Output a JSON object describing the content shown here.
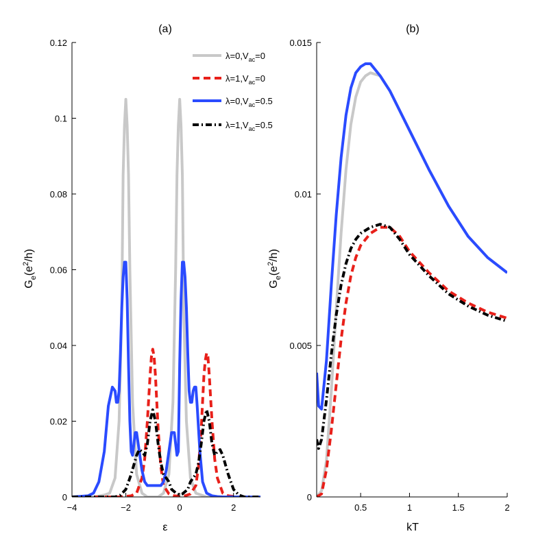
{
  "chart_data": [
    {
      "type": "line",
      "panel": "(a)",
      "xlabel": "ε",
      "ylabel": {
        "base": "G",
        "sub": "e",
        "tail": "(e",
        "sup": "2",
        "end": "/h)"
      },
      "xlim": [
        -4,
        3
      ],
      "ylim": [
        0,
        0.12
      ],
      "xticks": [
        -4,
        -2,
        0,
        2
      ],
      "xtick_labels": [
        "−4",
        "−2",
        "0",
        "2"
      ],
      "yticks": [
        0,
        0.02,
        0.04,
        0.06,
        0.08,
        0.1,
        0.12
      ],
      "ytick_labels": [
        "0",
        "0.02",
        "0.04",
        "0.06",
        "0.08",
        "0.1",
        "0.12"
      ],
      "legend_position": "top-right",
      "series": [
        {
          "name": "λ=0,V_ac=0",
          "label": {
            "pre": "λ=0,V",
            "sub": "ac",
            "post": "=0"
          },
          "color": "#c8c8c8",
          "dash": "solid",
          "width": 4,
          "x": [
            -4,
            -3.2,
            -2.8,
            -2.6,
            -2.4,
            -2.25,
            -2.15,
            -2.1,
            -2.05,
            -2,
            -1.95,
            -1.9,
            -1.85,
            -1.75,
            -1.6,
            -1.4,
            -1.2,
            -1,
            -0.8,
            -0.6,
            -0.4,
            -0.25,
            -0.15,
            -0.1,
            -0.05,
            0,
            0.05,
            0.1,
            0.15,
            0.25,
            0.4,
            0.6,
            0.8,
            1,
            1.5,
            2,
            3
          ],
          "y": [
            0,
            0,
            0.0005,
            0.001,
            0.005,
            0.02,
            0.05,
            0.085,
            0.098,
            0.105,
            0.098,
            0.085,
            0.06,
            0.025,
            0.006,
            0.001,
            0,
            0,
            0,
            0.001,
            0.006,
            0.025,
            0.06,
            0.085,
            0.098,
            0.105,
            0.098,
            0.085,
            0.05,
            0.02,
            0.005,
            0.001,
            0.0005,
            0,
            0,
            0,
            0
          ]
        },
        {
          "name": "λ=1,V_ac=0",
          "label": {
            "pre": "λ=1,V",
            "sub": "ac",
            "post": "=0"
          },
          "color": "#e8201a",
          "dash": "10,6",
          "width": 4,
          "x": [
            -4,
            -2.2,
            -1.8,
            -1.6,
            -1.4,
            -1.3,
            -1.2,
            -1.1,
            -1.05,
            -1,
            -0.95,
            -0.9,
            -0.8,
            -0.7,
            -0.6,
            -0.4,
            -0.2,
            0,
            0.2,
            0.4,
            0.6,
            0.7,
            0.8,
            0.9,
            0.95,
            1,
            1.05,
            1.1,
            1.2,
            1.3,
            1.4,
            1.6,
            1.8,
            2.2,
            3
          ],
          "y": [
            0,
            0,
            0.0003,
            0.001,
            0.005,
            0.01,
            0.02,
            0.032,
            0.037,
            0.039,
            0.037,
            0.032,
            0.018,
            0.008,
            0.003,
            0.0008,
            0.0003,
            0.0002,
            0.0003,
            0.0008,
            0.003,
            0.008,
            0.018,
            0.032,
            0.036,
            0.038,
            0.037,
            0.032,
            0.02,
            0.01,
            0.005,
            0.001,
            0.0003,
            0,
            0
          ]
        },
        {
          "name": "λ=0,V_ac=0.5",
          "label": {
            "pre": "λ=0,V",
            "sub": "ac",
            "post": "=0.5"
          },
          "color": "#2a4bff",
          "dash": "solid",
          "width": 4,
          "x": [
            -4,
            -3.4,
            -3.2,
            -3.0,
            -2.8,
            -2.65,
            -2.5,
            -2.4,
            -2.35,
            -2.3,
            -2.25,
            -2.2,
            -2.15,
            -2.1,
            -2.05,
            -2,
            -1.95,
            -1.9,
            -1.85,
            -1.8,
            -1.75,
            -1.7,
            -1.65,
            -1.6,
            -1.5,
            -1.4,
            -1.3,
            -1.2,
            -1.1,
            -0.8,
            -0.7,
            -0.6,
            -0.5,
            -0.4,
            -0.3,
            -0.2,
            -0.15,
            -0.1,
            -0.05,
            0,
            0.05,
            0.1,
            0.15,
            0.2,
            0.25,
            0.3,
            0.35,
            0.4,
            0.45,
            0.5,
            0.55,
            0.6,
            0.65,
            0.75,
            0.85,
            1,
            1.2,
            1.4,
            1.6,
            2,
            3
          ],
          "y": [
            0,
            0.0003,
            0.001,
            0.004,
            0.012,
            0.024,
            0.029,
            0.028,
            0.025,
            0.025,
            0.028,
            0.038,
            0.05,
            0.058,
            0.062,
            0.062,
            0.052,
            0.035,
            0.02,
            0.012,
            0.011,
            0.014,
            0.017,
            0.017,
            0.012,
            0.007,
            0.004,
            0.003,
            0.003,
            0.003,
            0.003,
            0.004,
            0.007,
            0.012,
            0.017,
            0.017,
            0.014,
            0.011,
            0.012,
            0.035,
            0.052,
            0.062,
            0.062,
            0.058,
            0.05,
            0.038,
            0.028,
            0.025,
            0.025,
            0.028,
            0.029,
            0.029,
            0.024,
            0.012,
            0.004,
            0.001,
            0.0003,
            0.0001,
            0,
            0,
            0
          ]
        },
        {
          "name": "λ=1,V_ac=0.5",
          "label": {
            "pre": "λ=1,V",
            "sub": "ac",
            "post": "=0.5"
          },
          "color": "#000000",
          "dash": "9,4,2,4",
          "width": 4,
          "x": [
            -4,
            -2.4,
            -2.2,
            -2.0,
            -1.8,
            -1.6,
            -1.5,
            -1.4,
            -1.3,
            -1.2,
            -1.1,
            -1,
            -0.9,
            -0.8,
            -0.7,
            -0.6,
            -0.5,
            -0.4,
            -0.3,
            -0.1,
            0,
            0.1,
            0.3,
            0.4,
            0.5,
            0.6,
            0.7,
            0.8,
            0.9,
            1,
            1.1,
            1.2,
            1.3,
            1.4,
            1.5,
            1.6,
            1.8,
            2.0,
            2.2,
            2.4,
            3
          ],
          "y": [
            0,
            0,
            0.0005,
            0.002,
            0.006,
            0.011,
            0.0125,
            0.012,
            0.011,
            0.014,
            0.02,
            0.023,
            0.02,
            0.014,
            0.009,
            0.006,
            0.005,
            0.004,
            0.002,
            0.0008,
            0.0006,
            0.0008,
            0.002,
            0.004,
            0.005,
            0.006,
            0.009,
            0.014,
            0.02,
            0.023,
            0.02,
            0.014,
            0.011,
            0.012,
            0.0125,
            0.011,
            0.006,
            0.002,
            0.0005,
            0,
            0
          ]
        }
      ]
    },
    {
      "type": "line",
      "panel": "(b)",
      "xlabel": "kT",
      "ylabel": {
        "base": "G",
        "sub": "e",
        "tail": "(e",
        "sup": "2",
        "end": "/h)"
      },
      "xlim": [
        0.05,
        2
      ],
      "ylim": [
        0,
        0.015
      ],
      "xticks": [
        0.5,
        1,
        1.5,
        2
      ],
      "xtick_labels": [
        "0.5",
        "1",
        "1.5",
        "2"
      ],
      "yticks": [
        0,
        0.005,
        0.01,
        0.015
      ],
      "ytick_labels": [
        "0",
        "0.005",
        "0.01",
        "0.015"
      ],
      "series": [
        {
          "name": "λ=0,V_ac=0",
          "color": "#c8c8c8",
          "dash": "solid",
          "width": 4,
          "x": [
            0.05,
            0.1,
            0.15,
            0.2,
            0.25,
            0.3,
            0.35,
            0.4,
            0.45,
            0.5,
            0.55,
            0.6,
            0.7,
            0.8,
            1.0,
            1.2,
            1.4,
            1.6,
            1.8,
            2.0
          ],
          "y": [
            0,
            0.0002,
            0.0012,
            0.0035,
            0.0062,
            0.0087,
            0.0108,
            0.0123,
            0.0132,
            0.0137,
            0.0139,
            0.014,
            0.0139,
            0.0134,
            0.0121,
            0.0108,
            0.0096,
            0.0086,
            0.0079,
            0.0074
          ]
        },
        {
          "name": "λ=1,V_ac=0",
          "color": "#e8201a",
          "dash": "10,6",
          "width": 4,
          "x": [
            0.05,
            0.1,
            0.15,
            0.2,
            0.25,
            0.3,
            0.35,
            0.4,
            0.45,
            0.5,
            0.6,
            0.7,
            0.8,
            0.9,
            1.0,
            1.2,
            1.4,
            1.6,
            1.8,
            2.0
          ],
          "y": [
            0,
            0.0001,
            0.0009,
            0.0022,
            0.0037,
            0.0052,
            0.0064,
            0.0073,
            0.0079,
            0.0083,
            0.0087,
            0.0089,
            0.0089,
            0.0086,
            0.0081,
            0.0074,
            0.0068,
            0.0064,
            0.0061,
            0.0059
          ]
        },
        {
          "name": "λ=0,V_ac=0.5",
          "color": "#2a4bff",
          "dash": "solid",
          "width": 4,
          "x": [
            0.05,
            0.07,
            0.1,
            0.15,
            0.2,
            0.25,
            0.3,
            0.35,
            0.4,
            0.45,
            0.5,
            0.55,
            0.6,
            0.65,
            0.7,
            0.8,
            1.0,
            1.2,
            1.4,
            1.6,
            1.8,
            2.0
          ],
          "y": [
            0.0041,
            0.003,
            0.0029,
            0.0045,
            0.007,
            0.0093,
            0.0112,
            0.0126,
            0.0135,
            0.014,
            0.0142,
            0.0143,
            0.0143,
            0.0141,
            0.0139,
            0.0134,
            0.0121,
            0.0108,
            0.0096,
            0.0086,
            0.0079,
            0.0074
          ]
        },
        {
          "name": "λ=1,V_ac=0.5",
          "color": "#000000",
          "dash": "9,4,2,4",
          "width": 4,
          "x": [
            0.05,
            0.07,
            0.1,
            0.15,
            0.2,
            0.25,
            0.3,
            0.35,
            0.4,
            0.45,
            0.5,
            0.6,
            0.7,
            0.8,
            0.9,
            1.0,
            1.2,
            1.4,
            1.6,
            1.8,
            2.0
          ],
          "y": [
            0.0019,
            0.0016,
            0.0019,
            0.0032,
            0.0047,
            0.006,
            0.007,
            0.0077,
            0.0082,
            0.0085,
            0.0087,
            0.0089,
            0.009,
            0.0089,
            0.0085,
            0.008,
            0.0073,
            0.0067,
            0.0063,
            0.006,
            0.0058
          ]
        }
      ]
    }
  ]
}
